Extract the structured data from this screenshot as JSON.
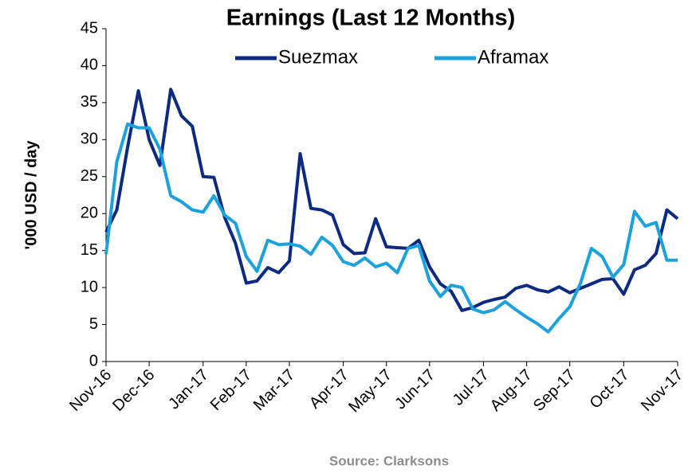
{
  "chart_data": {
    "type": "line",
    "title": "Earnings (Last 12 Months)",
    "y_label": "'000 USD / day",
    "source": "Source: Clarksons",
    "categories": [
      "Nov-16",
      null,
      null,
      null,
      "Dec-16",
      null,
      null,
      null,
      null,
      "Jan-17",
      null,
      null,
      null,
      "Feb-17",
      null,
      null,
      null,
      "Mar-17",
      null,
      null,
      null,
      null,
      "Apr-17",
      null,
      null,
      null,
      "May-17",
      null,
      null,
      null,
      "Jun-17",
      null,
      null,
      null,
      null,
      "Jul-17",
      null,
      null,
      null,
      "Aug-17",
      null,
      null,
      null,
      "Sep-17",
      null,
      null,
      null,
      null,
      "Oct-17",
      null,
      null,
      null,
      null,
      "Nov-17"
    ],
    "series": [
      {
        "name": "Suezmax",
        "color": "#0b2a80",
        "values": [
          17.5,
          20.5,
          29,
          36.6,
          30,
          26.5,
          36.8,
          33.2,
          31.8,
          25,
          24.9,
          19.5,
          16,
          10.6,
          10.9,
          12.7,
          12,
          13.6,
          28.1,
          20.7,
          20.5,
          19.8,
          15.8,
          14.6,
          14.7,
          19.3,
          15.5,
          15.4,
          15.3,
          16.4,
          12.8,
          10.5,
          9.5,
          6.9,
          7.3,
          8,
          8.4,
          8.7,
          9.9,
          10.3,
          9.7,
          9.4,
          10.1,
          9.3,
          9.9,
          10.5,
          11.1,
          11.2,
          9.1,
          12.4,
          13,
          14.6,
          20.5,
          19.3
        ]
      },
      {
        "name": "Aframax",
        "color": "#1ba1db",
        "values": [
          14.5,
          27,
          32.1,
          31.6,
          31.6,
          28.7,
          22.4,
          21.6,
          20.5,
          20.2,
          22.4,
          19.8,
          18.7,
          14.2,
          12.2,
          16.4,
          15.8,
          15.9,
          15.6,
          14.5,
          16.8,
          15.7,
          13.5,
          13,
          14,
          12.8,
          13.3,
          12,
          15.3,
          15.7,
          10.9,
          8.8,
          10.3,
          10,
          7.1,
          6.6,
          7,
          8.1,
          7,
          6,
          5.1,
          4,
          5.8,
          7.4,
          10.6,
          15.3,
          14.2,
          11.4,
          13.1,
          20.3,
          18.3,
          18.8,
          13.7,
          13.7
        ]
      }
    ],
    "ylim": [
      0,
      45
    ],
    "yticks": [
      0,
      5,
      10,
      15,
      20,
      25,
      30,
      35,
      40,
      45
    ],
    "legend": "top"
  }
}
